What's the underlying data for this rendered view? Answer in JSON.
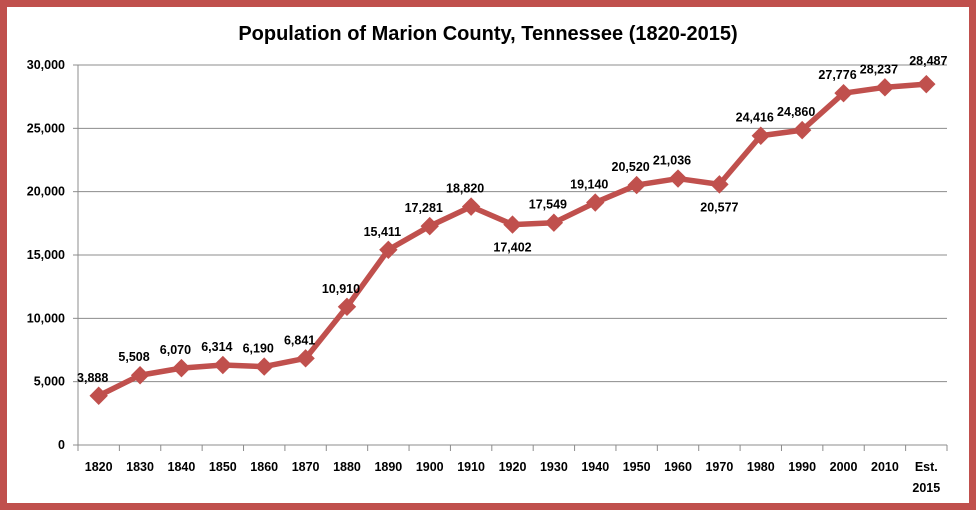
{
  "chart_data": {
    "type": "line",
    "title": "Population of Marion County, Tennessee (1820-2015)",
    "xlabel": "",
    "ylabel": "",
    "ylim": [
      0,
      30000
    ],
    "yticks": [
      "0",
      "5,000",
      "10,000",
      "15,000",
      "20,000",
      "25,000",
      "30,000"
    ],
    "grid": true,
    "legend": "none",
    "categories": [
      "1820",
      "1830",
      "1840",
      "1850",
      "1860",
      "1870",
      "1880",
      "1890",
      "1900",
      "1910",
      "1920",
      "1930",
      "1940",
      "1950",
      "1960",
      "1970",
      "1980",
      "1990",
      "2000",
      "2010",
      "Est. 2015"
    ],
    "series": [
      {
        "name": "Population",
        "color": "#c0504d",
        "values": [
          3888,
          5508,
          6070,
          6314,
          6190,
          6841,
          10910,
          15411,
          17281,
          18820,
          17402,
          17549,
          19140,
          20520,
          21036,
          20577,
          24416,
          24860,
          27776,
          28237,
          28487
        ],
        "labels": [
          "3,888",
          "5,508",
          "6,070",
          "6,314",
          "6,190",
          "6,841",
          "10,910",
          "15,411",
          "17,281",
          "18,820",
          "17,402",
          "17,549",
          "19,140",
          "20,520",
          "21,036",
          "20,577",
          "24,416",
          "24,860",
          "27,776",
          "28,237",
          "28,487"
        ]
      }
    ]
  }
}
